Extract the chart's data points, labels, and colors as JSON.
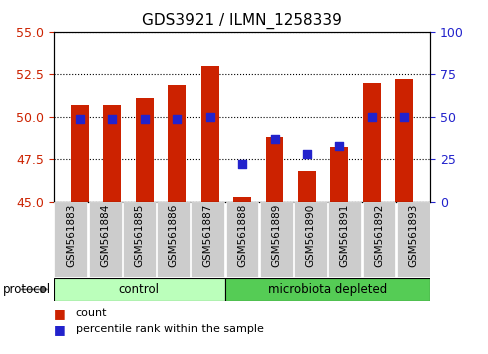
{
  "title": "GDS3921 / ILMN_1258339",
  "samples": [
    "GSM561883",
    "GSM561884",
    "GSM561885",
    "GSM561886",
    "GSM561887",
    "GSM561888",
    "GSM561889",
    "GSM561890",
    "GSM561891",
    "GSM561892",
    "GSM561893"
  ],
  "counts": [
    50.7,
    50.7,
    51.1,
    51.9,
    53.0,
    45.3,
    48.8,
    46.8,
    48.2,
    52.0,
    52.2
  ],
  "percentile_ranks": [
    49,
    49,
    49,
    49,
    50,
    22,
    37,
    28,
    33,
    50,
    50
  ],
  "bar_color": "#cc2200",
  "dot_color": "#2222cc",
  "ylim_left": [
    45,
    55
  ],
  "ylim_right": [
    0,
    100
  ],
  "yticks_left": [
    45,
    47.5,
    50,
    52.5,
    55
  ],
  "yticks_right": [
    0,
    25,
    50,
    75,
    100
  ],
  "control_count": 5,
  "micro_count": 6,
  "control_color": "#bbffbb",
  "microbiota_color": "#55cc55",
  "bg_color": "#cccccc",
  "legend_count_color": "#cc2200",
  "legend_pct_color": "#2222cc",
  "title_fontsize": 11,
  "tick_fontsize": 9,
  "label_fontsize": 7.5,
  "proto_fontsize": 8.5,
  "legend_fontsize": 8
}
